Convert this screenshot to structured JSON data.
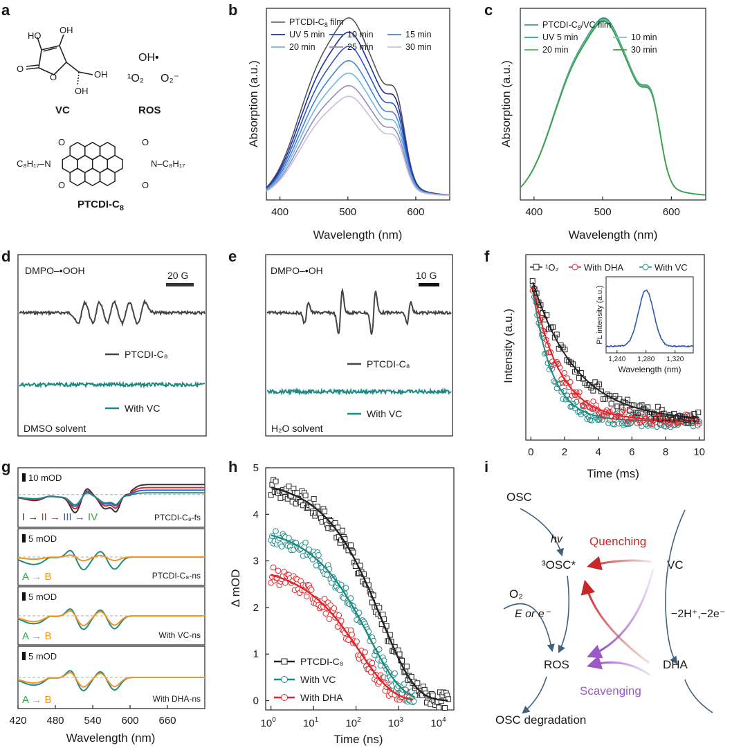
{
  "panels": {
    "a": {
      "letter": "a",
      "vc_label": "VC",
      "ros_label": "ROS",
      "ptcdi_label_main": "PTCDI-C",
      "ptcdi_label_sub": "8",
      "ros_species": [
        "OH•",
        "¹O₂",
        "O₂⁻"
      ],
      "vc_groups": [
        "HO",
        "OH",
        "O",
        "O",
        "OH",
        "OH"
      ],
      "ptcdi_left": "C₈H₁₇–N",
      "ptcdi_right": "N–C₈H₁₇",
      "ptcdi_o": "O"
    },
    "b": {
      "letter": "b"
    },
    "c": {
      "letter": "c"
    },
    "d": {
      "letter": "d",
      "title": "DMPO–•OOH",
      "scale": "20 G",
      "trace1_label": "PTCDI-C₈",
      "trace2_label": "With VC",
      "solvent": "DMSO solvent"
    },
    "e": {
      "letter": "e",
      "title": "DMPO–•OH",
      "scale": "10 G",
      "trace1_label": "PTCDI-C₈",
      "trace2_label": "With VC",
      "solvent": "H₂O solvent"
    },
    "f": {
      "letter": "f"
    },
    "g": {
      "letter": "g",
      "subpanels": [
        {
          "scale": "10 mOD",
          "name": "PTCDI-C₈-fs",
          "seq": [
            "I",
            "→",
            "II",
            "→",
            "III",
            "→",
            "IV"
          ]
        },
        {
          "scale": "5 mOD",
          "name": "PTCDI-C₈-ns",
          "seq": [
            "A",
            "→",
            "B"
          ]
        },
        {
          "scale": "5 mOD",
          "name": "With VC-ns",
          "seq": [
            "A",
            "→",
            "B"
          ]
        },
        {
          "scale": "5 mOD",
          "name": "With DHA-ns",
          "seq": [
            "A",
            "→",
            "B"
          ]
        }
      ],
      "xlabel": "Wavelength (nm)",
      "xticks": [
        "420",
        "480",
        "540",
        "600",
        "660"
      ]
    },
    "h": {
      "letter": "h"
    },
    "i": {
      "letter": "i",
      "osc": "OSC",
      "hv": "hv",
      "quenching": "Quenching",
      "osc_star": "³OSC*",
      "vc": "VC",
      "o2": "O₂",
      "e_or": "E or e⁻",
      "proton": "−2H⁺,−2e⁻",
      "ros": "ROS",
      "dha": "DHA",
      "scavenging": "Scavenging",
      "degradation": "OSC degradation"
    }
  },
  "colors": {
    "black": "#333333",
    "teal": "#1f8a84",
    "red": "#e0252b",
    "orange": "#f29423",
    "green": "#2ea644",
    "blue": "#2d63c8",
    "navy": "#23309a",
    "purple": "#8a5cc0",
    "quench": "#c62828",
    "scav": "#9b59c8"
  },
  "chart_data": [
    {
      "id": "b",
      "type": "line",
      "title": "",
      "xlabel": "Wavelength (nm)",
      "ylabel": "Absorption (a.u.)",
      "xlim": [
        380,
        650
      ],
      "ylim": [
        0,
        1.0
      ],
      "xticks": [
        400,
        500,
        600
      ],
      "series": [
        {
          "name": "PTCDI-C₈ film",
          "color": "#555555",
          "scale": 1.0
        },
        {
          "name": "UV 5 min",
          "color": "#1f2d9a",
          "scale": 0.92
        },
        {
          "name": "10 min",
          "color": "#2f55c6",
          "scale": 0.84
        },
        {
          "name": "15 min",
          "color": "#3f86d8",
          "scale": 0.76
        },
        {
          "name": "20 min",
          "color": "#6fb6e6",
          "scale": 0.69
        },
        {
          "name": "25 min",
          "color": "#9489bf",
          "scale": 0.62
        },
        {
          "name": "30 min",
          "color": "#c9bcdc",
          "scale": 0.56
        }
      ],
      "legend_main_sub": "8",
      "legend_main_suffix": " film",
      "legend_main_prefix": "PTCDI-C"
    },
    {
      "id": "c",
      "type": "line",
      "xlabel": "Wavelength (nm)",
      "ylabel": "Absorption (a.u.)",
      "xlim": [
        380,
        650
      ],
      "ylim": [
        0,
        1.0
      ],
      "xticks": [
        400,
        500,
        600
      ],
      "series": [
        {
          "name": "PTCDI-C₈/VC film",
          "color": "#1f8a84",
          "scale": 1.0
        },
        {
          "name": "UV 5 min",
          "color": "#2aa88f",
          "scale": 0.995
        },
        {
          "name": "10 min",
          "color": "#7cc9b0",
          "scale": 0.99
        },
        {
          "name": "20 min",
          "color": "#4fae5c",
          "scale": 0.985
        },
        {
          "name": "30 min",
          "color": "#3e9e4a",
          "scale": 0.98
        }
      ],
      "legend_main_prefix": "PTCDI-C",
      "legend_main_sub": "8",
      "legend_main_suffix": "/VC film"
    },
    {
      "id": "f",
      "type": "scatter",
      "xlabel": "Time (ms)",
      "ylabel": "Intensity (a.u.)",
      "xlim": [
        -0.3,
        10.3
      ],
      "xticks": [
        0,
        2,
        4,
        6,
        8,
        10
      ],
      "series": [
        {
          "name": "¹O₂",
          "color": "#222222",
          "marker": "square",
          "tau": 2.6
        },
        {
          "name": "With DHA",
          "color": "#e0252b",
          "marker": "circle",
          "tau": 1.6
        },
        {
          "name": "With VC",
          "color": "#1f8a84",
          "marker": "circle",
          "tau": 1.15
        }
      ],
      "inset": {
        "xlabel": "Wavelength (nm)",
        "ylabel": "PL intensity (a.u.)",
        "xlim": [
          1225,
          1345
        ],
        "xticks": [
          1240,
          1280,
          1320
        ],
        "xtick_labels": [
          "1,240",
          "1,280",
          "1,320"
        ],
        "peak": 1280
      }
    },
    {
      "id": "h",
      "type": "scatter",
      "xlabel": "Time (ns)",
      "ylabel": "Δ mOD",
      "xscale": "log",
      "xlim": [
        0.75,
        20000
      ],
      "ylim": [
        -0.2,
        5
      ],
      "yticks": [
        0,
        1,
        2,
        3,
        4,
        5
      ],
      "xticks_exp": [
        0,
        1,
        2,
        3,
        4
      ],
      "series": [
        {
          "name": "PTCDI-C₈",
          "color": "#222222",
          "marker": "square",
          "A": 4.75,
          "tau": 400,
          "tmax": 15000
        },
        {
          "name": "With VC",
          "color": "#1f8a84",
          "marker": "circle",
          "A": 3.75,
          "tau": 200,
          "tmax": 2500
        },
        {
          "name": "With DHA",
          "color": "#e0252b",
          "marker": "circle",
          "A": 2.9,
          "tau": 120,
          "tmax": 2200
        }
      ]
    }
  ]
}
